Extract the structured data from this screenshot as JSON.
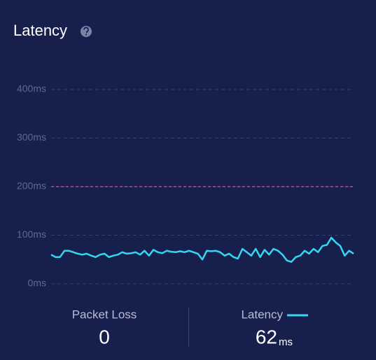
{
  "chart_data": {
    "type": "line",
    "title": "Latency",
    "series": [
      {
        "name": "Latency",
        "color": "#35d7f0",
        "values": [
          60,
          55,
          55,
          68,
          68,
          65,
          62,
          60,
          62,
          58,
          55,
          60,
          62,
          55,
          58,
          60,
          65,
          62,
          63,
          65,
          60,
          68,
          58,
          70,
          65,
          63,
          68,
          66,
          65,
          67,
          65,
          68,
          65,
          62,
          50,
          68,
          67,
          68,
          65,
          58,
          62,
          55,
          52,
          72,
          65,
          58,
          72,
          55,
          70,
          60,
          72,
          68,
          60,
          48,
          45,
          55,
          58,
          68,
          62,
          72,
          65,
          78,
          80,
          95,
          85,
          78,
          58,
          68,
          62
        ]
      }
    ],
    "ylim": [
      0,
      400
    ],
    "yticks": [
      {
        "value": 0,
        "label": "0ms"
      },
      {
        "value": 100,
        "label": "100ms"
      },
      {
        "value": 200,
        "label": "200ms"
      },
      {
        "value": 300,
        "label": "300ms"
      },
      {
        "value": 400,
        "label": "400ms"
      }
    ],
    "grid": true,
    "reference_line": {
      "value": 200,
      "color": "#d9577a"
    }
  },
  "stats": {
    "packet_loss": {
      "label": "Packet Loss",
      "value": 0
    },
    "latency": {
      "value": 62,
      "unit": "ms"
    }
  }
}
